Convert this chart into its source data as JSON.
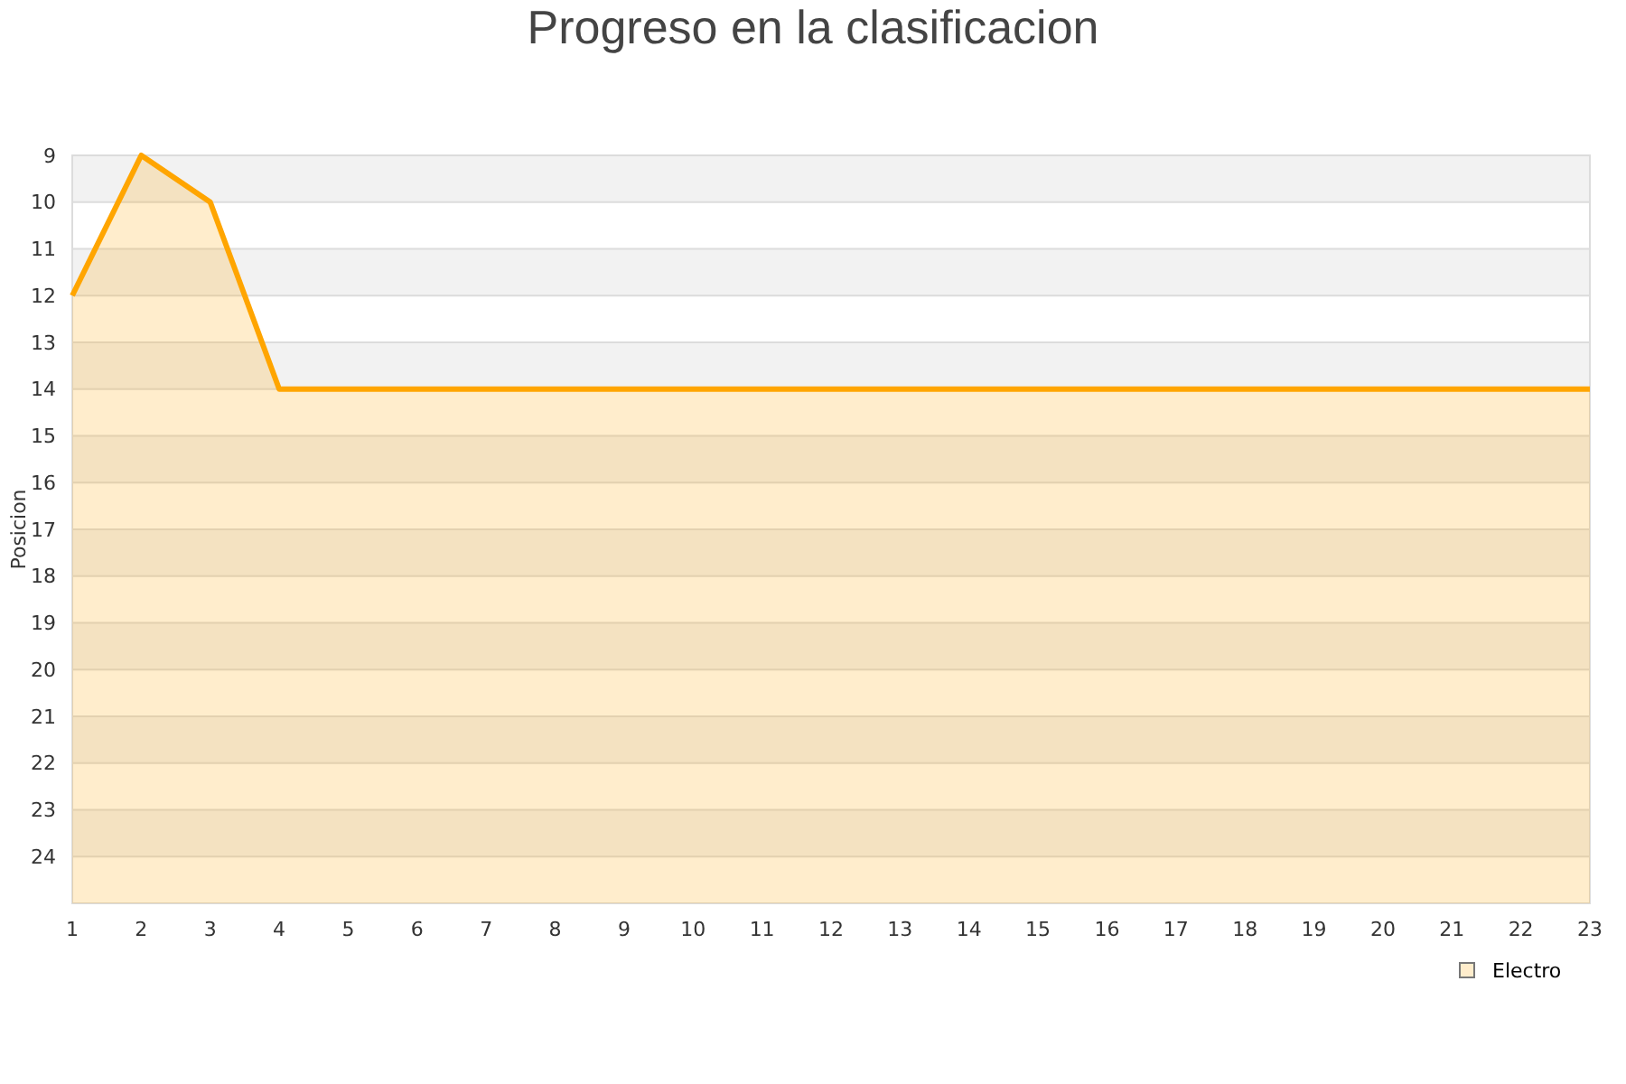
{
  "chart_data": {
    "type": "area",
    "title": "Progreso en la clasificacion",
    "ylabel": "Posicion",
    "x": [
      1,
      2,
      3,
      4,
      5,
      6,
      7,
      8,
      9,
      10,
      11,
      12,
      13,
      14,
      15,
      16,
      17,
      18,
      19,
      20,
      21,
      22,
      23
    ],
    "series": [
      {
        "name": "Electro",
        "color": "#ffa500",
        "values": [
          12,
          9,
          10,
          14,
          14,
          14,
          14,
          14,
          14,
          14,
          14,
          14,
          14,
          14,
          14,
          14,
          14,
          14,
          14,
          14,
          14,
          14,
          14
        ]
      }
    ],
    "xlim": [
      1,
      23
    ],
    "xticks": [
      1,
      2,
      3,
      4,
      5,
      6,
      7,
      8,
      9,
      10,
      11,
      12,
      13,
      14,
      15,
      16,
      17,
      18,
      19,
      20,
      21,
      22,
      23
    ],
    "ylim": [
      25,
      9
    ],
    "yticks": [
      9,
      10,
      11,
      12,
      13,
      14,
      15,
      16,
      17,
      18,
      19,
      20,
      21,
      22,
      23,
      24
    ],
    "grid": "y",
    "legend": "bottom right"
  }
}
